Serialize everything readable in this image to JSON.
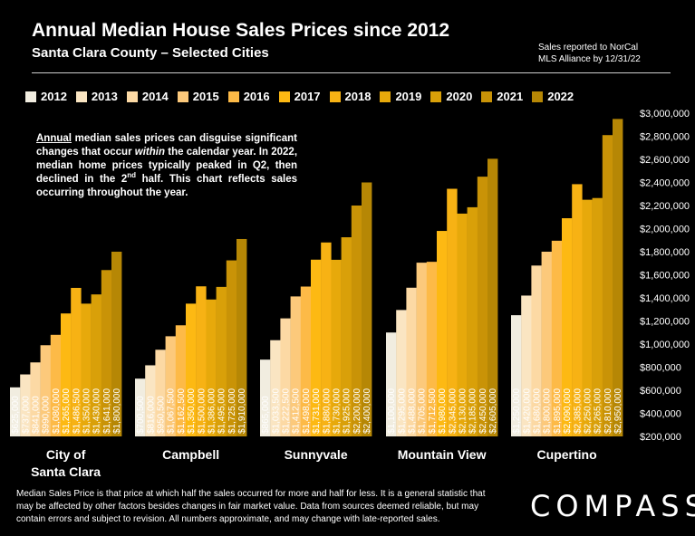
{
  "header": {
    "title": "Annual Median House Sales Prices since 2012",
    "subtitle": "Santa Clara County – Selected Cities",
    "source_line1": "Sales reported to NorCal",
    "source_line2": "MLS Alliance by 12/31/22"
  },
  "note": {
    "w1": "Annual",
    "t1": " median sales prices can disguise significant changes that occur ",
    "w2": "within",
    "t2": " the calendar year. In 2022, median home prices typically peaked in Q2, then declined in the 2",
    "sup": "nd",
    "t3": " half. This chart reflects sales occurring throughout the year."
  },
  "footer": {
    "text": "Median Sales Price is that price at which half the sales occurred for more and half for less. It is a general statistic that may be affected by other factors besides changes in fair market value. Data from sources deemed reliable, but may contain errors and subject to revision.  All numbers approximate, and may change with late-reported sales."
  },
  "logo": {
    "text": "COMPASS"
  },
  "colors": {
    "background": "#000000",
    "years": [
      "#f1ede0",
      "#fae5c2",
      "#fcd9a4",
      "#fcc97b",
      "#fdba47",
      "#fdb913",
      "#f7b214",
      "#e7a90b",
      "#d9a009",
      "#c99307",
      "#b68705"
    ]
  },
  "chart_data": {
    "type": "bar",
    "title": "Annual Median House Sales Prices since 2012",
    "subtitle": "Santa Clara County – Selected Cities",
    "categories": [
      "City of Santa Clara",
      "Campbell",
      "Sunnyvale",
      "Mountain View",
      "Cupertino"
    ],
    "category_labels": [
      [
        "City of",
        "Santa Clara"
      ],
      [
        "Campbell"
      ],
      [
        "Sunnyvale"
      ],
      [
        "Mountain View"
      ],
      [
        "Cupertino"
      ]
    ],
    "series": [
      {
        "name": "2012",
        "values": [
          625000,
          700500,
          865000,
          1100000,
          1250000
        ],
        "labels": [
          "$625,000",
          "$700,500",
          "$865,000",
          "$1,100,000",
          "$1,250,000"
        ]
      },
      {
        "name": "2013",
        "values": [
          737000,
          816000,
          1033500,
          1295000,
          1420000
        ],
        "labels": [
          "$737,000",
          "$816,000",
          "$1,033,500",
          "$1,295,000",
          "$1,420,000"
        ]
      },
      {
        "name": "2014",
        "values": [
          841000,
          950500,
          1222500,
          1488000,
          1680000
        ],
        "labels": [
          "$841,000",
          "$950,500",
          "$1,222,500",
          "$1,488,000",
          "$1,680,000"
        ]
      },
      {
        "name": "2015",
        "values": [
          990000,
          1067500,
          1412500,
          1705000,
          1800000
        ],
        "labels": [
          "$990,000",
          "$1,067,500",
          "$1,412,500",
          "$1,705,000",
          "$1,800,000"
        ]
      },
      {
        "name": "2016",
        "values": [
          1080000,
          1162500,
          1498000,
          1712500,
          1895000
        ],
        "labels": [
          "$1,080,000",
          "$1,162,500",
          "$1,498,000",
          "$1,712,500",
          "$1,895,000"
        ]
      },
      {
        "name": "2017",
        "values": [
          1265000,
          1350000,
          1731000,
          1980000,
          2090000
        ],
        "labels": [
          "$1,265,000",
          "$1,350,000",
          "$1,731,000",
          "$1,980,000",
          "$2,090,000"
        ]
      },
      {
        "name": "2018",
        "values": [
          1486500,
          1500000,
          1880000,
          2345000,
          2385000
        ],
        "labels": [
          "$1,486,500",
          "$1,500,000",
          "$1,880,000",
          "$2,345,000",
          "$2,385,000"
        ]
      },
      {
        "name": "2019",
        "values": [
          1350000,
          1386000,
          1730000,
          2130000,
          2250000
        ],
        "labels": [
          "$1,350,000",
          "$1,386,000",
          "$1,730,000",
          "$2,130,000",
          "$2,250,000"
        ]
      },
      {
        "name": "2020",
        "values": [
          1430000,
          1495000,
          1925000,
          2185000,
          2265000
        ],
        "labels": [
          "$1,430,000",
          "$1,495,000",
          "$1,925,000",
          "$2,185,000",
          "$2,265,000"
        ]
      },
      {
        "name": "2021",
        "values": [
          1641000,
          1725000,
          2200000,
          2450000,
          2810000
        ],
        "labels": [
          "$1,641,000",
          "$1,725,000",
          "$2,200,000",
          "$2,450,000",
          "$2,810,000"
        ]
      },
      {
        "name": "2022",
        "values": [
          1800000,
          1910000,
          2400000,
          2605000,
          2950000
        ],
        "labels": [
          "$1,800,000",
          "$1,910,000",
          "$2,400,000",
          "$2,605,000",
          "$2,950,000"
        ]
      }
    ],
    "ylim": [
      200000,
      3000000
    ],
    "yticks": [
      "$200,000",
      "$400,000",
      "$600,000",
      "$800,000",
      "$1,000,000",
      "$1,200,000",
      "$1,400,000",
      "$1,600,000",
      "$1,800,000",
      "$2,000,000",
      "$2,200,000",
      "$2,400,000",
      "$2,600,000",
      "$2,800,000",
      "$3,000,000"
    ],
    "ytick_values": [
      200000,
      400000,
      600000,
      800000,
      1000000,
      1200000,
      1400000,
      1600000,
      1800000,
      2000000,
      2200000,
      2400000,
      2600000,
      2800000,
      3000000
    ],
    "legend_position": "top",
    "grid": false
  }
}
